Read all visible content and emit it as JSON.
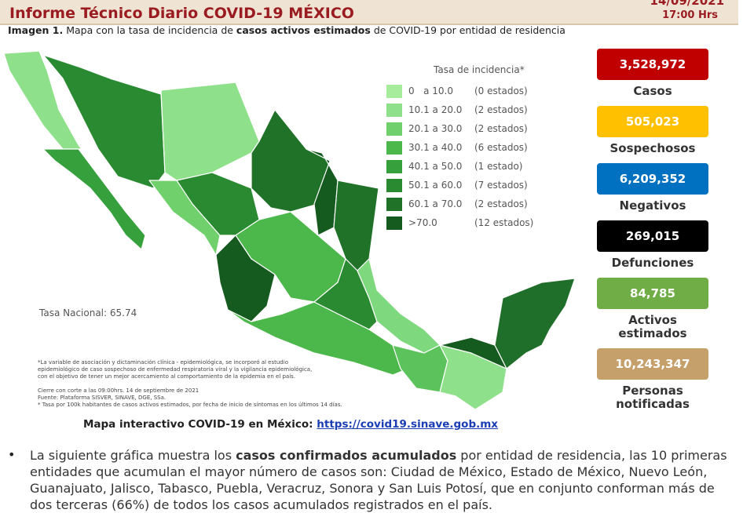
{
  "header": {
    "title": "Informe Técnico Diario COVID-19 MÉXICO",
    "date": "14/09/2021",
    "time": "17:00 Hrs"
  },
  "caption": [
    {
      "text": "Imagen 1.",
      "bold": true
    },
    {
      "text": " Mapa con la tasa de incidencia de ",
      "bold": false
    },
    {
      "text": "casos activos estimados",
      "bold": true
    },
    {
      "text": " de COVID-19 por entidad de residencia",
      "bold": false
    }
  ],
  "legend": {
    "title": "Tasa de incidencia*",
    "items": [
      {
        "range": "0   a 10.0",
        "count": "(0 estados)",
        "color": "#a6ec9c"
      },
      {
        "range": "10.1 a 20.0",
        "count": "(2 estados)",
        "color": "#8fe08a"
      },
      {
        "range": "20.1 a 30.0",
        "count": "(2 estados)",
        "color": "#6fd06c"
      },
      {
        "range": "30.1 a 40.0",
        "count": "(6 estados)",
        "color": "#4cb84c"
      },
      {
        "range": "40.1 a 50.0",
        "count": "(1 estado)",
        "color": "#36a03c"
      },
      {
        "range": "50.1 a 60.0",
        "count": "(7 estados)",
        "color": "#2a8a32"
      },
      {
        "range": "60.1 a 70.0",
        "count": "(2 estados)",
        "color": "#1f7228"
      },
      {
        "range": ">70.0",
        "count": "(12 estados)",
        "color": "#155a1e"
      }
    ]
  },
  "national_rate": "Tasa Nacional: 65.74",
  "notes": [
    "*La variable de asociación y dictaminación clínica - epidemiológica, se incorporó al estudio",
    "epidemiológico de caso sospechoso de enfermedad respiratoria viral y la vigilancia epidemiológica,",
    "con el objetivo de tener un mejor acercamiento al comportamiento de la epidemia en el país.",
    "Cierre con corte a las 09:00hrs. 14 de septiembre de 2021",
    "Fuente: Plataforma SISVER, SINAVE, DGE, SSa.",
    "* Tasa por 100k habitantes de casos activos estimados, por fecha de inicio de síntomas en los últimos 14 días."
  ],
  "stats": [
    {
      "value": "3,528,972",
      "label": [
        "Casos"
      ],
      "color": "#c00000",
      "text_color": "#ffffff"
    },
    {
      "value": "505,023",
      "label": [
        "Sospechosos"
      ],
      "color": "#ffc000",
      "text_color": "#ffffff"
    },
    {
      "value": "6,209,352",
      "label": [
        "Negativos"
      ],
      "color": "#0070c0",
      "text_color": "#ffffff"
    },
    {
      "value": "269,015",
      "label": [
        "Defunciones"
      ],
      "color": "#000000",
      "text_color": "#ffffff"
    },
    {
      "value": "84,785",
      "label": [
        "Activos",
        "estimados"
      ],
      "color": "#70ad47",
      "text_color": "#ffffff"
    },
    {
      "value": "10,243,347",
      "label": [
        "Personas",
        "notificadas"
      ],
      "color": "#c5a06a",
      "text_color": "#ffffff"
    }
  ],
  "link": {
    "label": "Mapa interactivo COVID-19 en México:",
    "url": "https://covid19.sinave.gob.mx"
  },
  "paragraph": [
    {
      "text": "La siguiente gráfica muestra los ",
      "bold": false
    },
    {
      "text": "casos confirmados acumulados",
      "bold": true
    },
    {
      "text": " por entidad de residencia, las 10 primeras entidades que acumulan el mayor número de casos son: Ciudad de México, Estado de México, Nuevo León, Guanajuato, Jalisco, Tabasco, Puebla, Veracruz, Sonora y San Luis Potosí, que en conjunto conforman más de dos terceras (66%) de todos los casos acumulados registrados en el país.",
      "bold": false
    }
  ]
}
